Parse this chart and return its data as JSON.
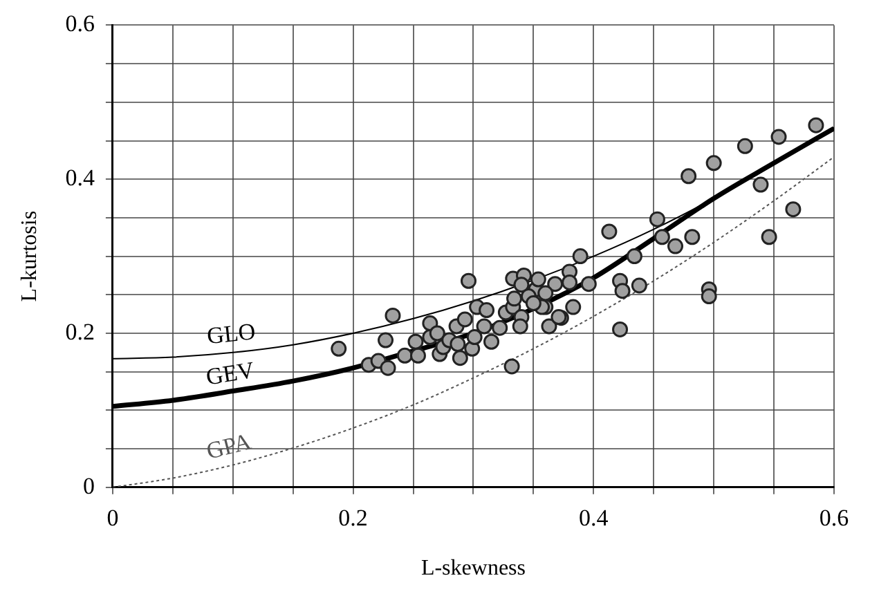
{
  "chart_data": {
    "type": "scatter",
    "xlabel": "L-skewness",
    "ylabel": "L-kurtosis",
    "xlim": [
      0,
      0.6
    ],
    "ylim": [
      0,
      0.6
    ],
    "xticks": [
      0,
      {
        "value": 0.05,
        "label": null
      },
      {
        "value": 0.1,
        "label": null
      },
      {
        "value": 0.15,
        "label": null
      },
      0.2,
      {
        "value": 0.25,
        "label": null
      },
      {
        "value": 0.3,
        "label": null
      },
      {
        "value": 0.35,
        "label": null
      },
      0.4,
      {
        "value": 0.45,
        "label": null
      },
      {
        "value": 0.5,
        "label": null
      },
      {
        "value": 0.55,
        "label": null
      },
      0.6
    ],
    "yticks": [
      0,
      {
        "value": 0.05,
        "label": null
      },
      {
        "value": 0.1,
        "label": null
      },
      {
        "value": 0.15,
        "label": null
      },
      0.2,
      {
        "value": 0.25,
        "label": null
      },
      {
        "value": 0.3,
        "label": null
      },
      {
        "value": 0.35,
        "label": null
      },
      0.4,
      {
        "value": 0.45,
        "label": null
      },
      {
        "value": 0.5,
        "label": null
      },
      {
        "value": 0.55,
        "label": null
      },
      0.6
    ],
    "grid": true,
    "legend": false,
    "series": [
      {
        "color": "#a0a0a0",
        "marker": "circle",
        "x": [
          0.585,
          0.554,
          0.526,
          0.5,
          0.479,
          0.539,
          0.566,
          0.546,
          0.413,
          0.453,
          0.457,
          0.468,
          0.482,
          0.434,
          0.389,
          0.422,
          0.424,
          0.438,
          0.496,
          0.496,
          0.422,
          0.38,
          0.38,
          0.396,
          0.383,
          0.373,
          0.363,
          0.368,
          0.36,
          0.188,
          0.233,
          0.227,
          0.213,
          0.221,
          0.229,
          0.296,
          0.332,
          0.243,
          0.254,
          0.252,
          0.264,
          0.264,
          0.272,
          0.27,
          0.275,
          0.28,
          0.286,
          0.289,
          0.287,
          0.293,
          0.299,
          0.301,
          0.303,
          0.311,
          0.309,
          0.315,
          0.322,
          0.327,
          0.333,
          0.34,
          0.339,
          0.334,
          0.333,
          0.342,
          0.34,
          0.352,
          0.354,
          0.357,
          0.36,
          0.371,
          0.346,
          0.35
        ],
        "values": [
          0.47,
          0.455,
          0.443,
          0.421,
          0.404,
          0.393,
          0.361,
          0.325,
          0.332,
          0.348,
          0.325,
          0.313,
          0.325,
          0.3,
          0.3,
          0.268,
          0.255,
          0.262,
          0.257,
          0.248,
          0.205,
          0.28,
          0.266,
          0.264,
          0.234,
          0.22,
          0.209,
          0.264,
          0.234,
          0.18,
          0.223,
          0.191,
          0.159,
          0.164,
          0.155,
          0.268,
          0.157,
          0.171,
          0.171,
          0.189,
          0.195,
          0.213,
          0.173,
          0.2,
          0.182,
          0.191,
          0.209,
          0.168,
          0.186,
          0.218,
          0.18,
          0.195,
          0.234,
          0.23,
          0.209,
          0.189,
          0.207,
          0.227,
          0.234,
          0.221,
          0.209,
          0.245,
          0.271,
          0.275,
          0.263,
          0.257,
          0.27,
          0.234,
          0.252,
          0.221,
          0.248,
          0.239
        ]
      },
      {
        "type": "line",
        "name": "GLO",
        "color": "#000000",
        "marker": "none",
        "line_style": "solid",
        "x": [
          0,
          0.05,
          0.1,
          0.15,
          0.2,
          0.25,
          0.3,
          0.35,
          0.4,
          0.45,
          0.5,
          0.55,
          0.6
        ],
        "values": [
          0.167,
          0.169,
          0.175,
          0.185,
          0.2,
          0.219,
          0.242,
          0.269,
          0.3,
          0.335,
          0.375,
          0.419,
          0.467
        ]
      },
      {
        "type": "line",
        "name": "GEV",
        "color": "#000000",
        "marker": "none",
        "line_style": "solid",
        "x": [
          0,
          0.05,
          0.1,
          0.15,
          0.2,
          0.25,
          0.3,
          0.35,
          0.4,
          0.45,
          0.5,
          0.55,
          0.6
        ],
        "values": [
          0.105,
          0.113,
          0.125,
          0.138,
          0.155,
          0.177,
          0.2,
          0.232,
          0.272,
          0.323,
          0.375,
          0.421,
          0.466
        ]
      },
      {
        "type": "line",
        "name": "GPA",
        "color": "#555555",
        "marker": "none",
        "line_style": "dotted",
        "x": [
          0,
          0.05,
          0.1,
          0.15,
          0.2,
          0.25,
          0.3,
          0.35,
          0.4,
          0.45,
          0.5,
          0.55,
          0.6
        ],
        "values": [
          0,
          0.012,
          0.029,
          0.051,
          0.077,
          0.107,
          0.142,
          0.18,
          0.222,
          0.268,
          0.318,
          0.372,
          0.429
        ]
      }
    ]
  }
}
